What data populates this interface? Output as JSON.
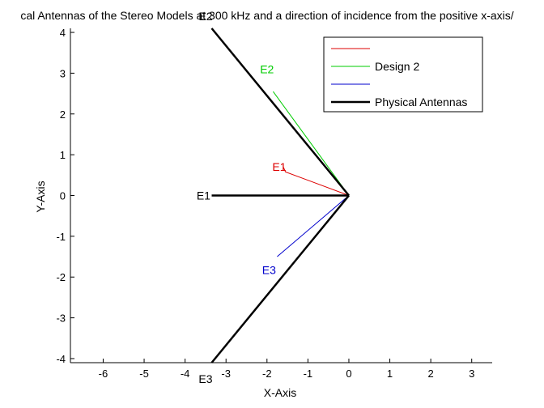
{
  "chart_data": {
    "type": "line",
    "title": "cal Antennas of the Stereo Models at 300 kHz and a direction of incidence from the positive x-axis/",
    "xlabel": "X-Axis",
    "ylabel": "Y-Axis",
    "xlim": [
      -6.8,
      3.5
    ],
    "ylim": [
      -4.1,
      4.1
    ],
    "xticks": [
      -6,
      -5,
      -4,
      -3,
      -2,
      -1,
      0,
      1,
      2,
      3
    ],
    "yticks": [
      -4,
      -3,
      -2,
      -1,
      0,
      1,
      2,
      3,
      4
    ],
    "grid": false,
    "legend_position": "top-right",
    "series": [
      {
        "name": "",
        "color": "#dd0000",
        "points": [
          [
            0,
            0
          ],
          [
            -1.55,
            0.58
          ],
          [
            -1.6,
            0.7
          ]
        ]
      },
      {
        "name": "Design 2",
        "color": "#00cc00",
        "points": [
          [
            0,
            0
          ],
          [
            -1.85,
            2.55
          ]
        ]
      },
      {
        "name": "",
        "color": "#0000cc",
        "points": [
          [
            0,
            0
          ],
          [
            -1.75,
            -1.5
          ]
        ]
      },
      {
        "name": "Physical Antennas",
        "color": "#000000",
        "segments": [
          [
            [
              0,
              0
            ],
            [
              -3.35,
              4.1
            ]
          ],
          [
            [
              0,
              0
            ],
            [
              -3.35,
              -4.1
            ]
          ],
          [
            [
              0,
              0
            ],
            [
              -3.35,
              0
            ]
          ]
        ]
      }
    ],
    "annotations": [
      {
        "text": "E2",
        "x": -3.5,
        "y": 4.4,
        "color": "#000000"
      },
      {
        "text": "E1",
        "x": -3.55,
        "y": 0,
        "color": "#000000"
      },
      {
        "text": "E3",
        "x": -3.5,
        "y": -4.5,
        "color": "#000000"
      },
      {
        "text": "E2",
        "x": -2.0,
        "y": 3.1,
        "color": "#00cc00"
      },
      {
        "text": "E1",
        "x": -1.7,
        "y": 0.7,
        "color": "#dd0000"
      },
      {
        "text": "E3",
        "x": -1.95,
        "y": -1.83,
        "color": "#0000cc"
      }
    ]
  }
}
